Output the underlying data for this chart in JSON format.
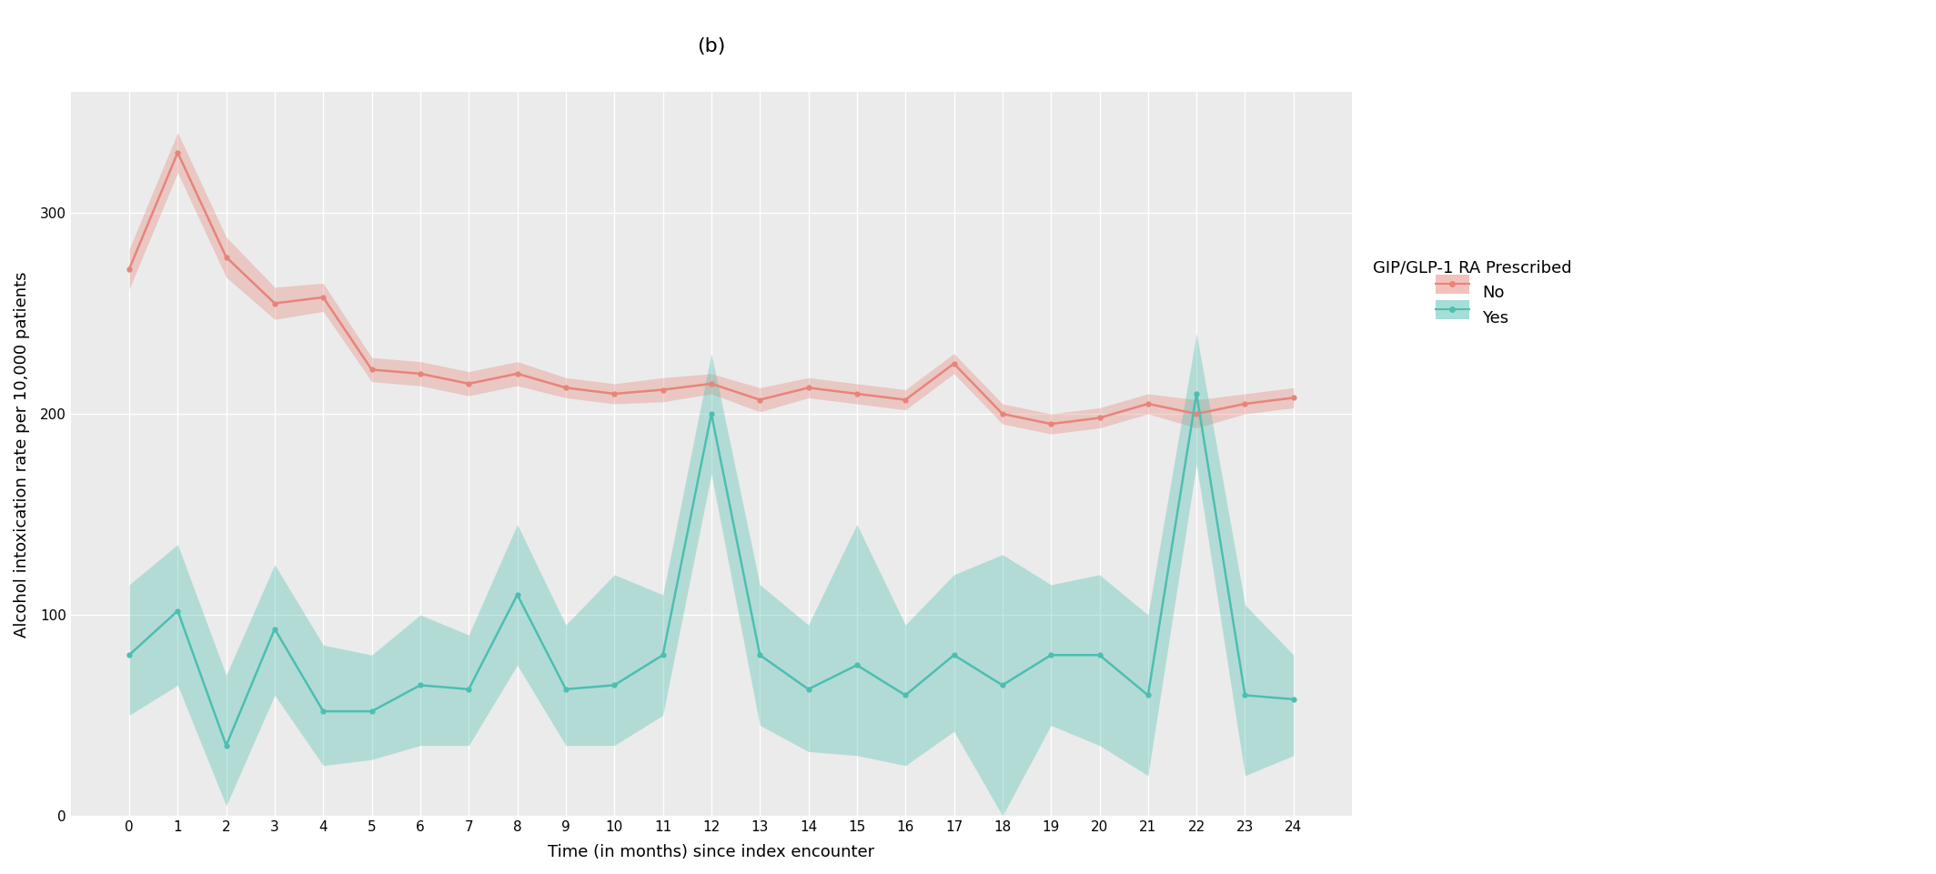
{
  "title": "(b)",
  "xlabel": "Time (in months) since index encounter",
  "ylabel": "Alcohol intoxication rate per 10,000 patients",
  "legend_title": "GIP/GLP-1 RA Prescribed",
  "legend_labels": [
    "No",
    "Yes"
  ],
  "x": [
    0,
    1,
    2,
    3,
    4,
    5,
    6,
    7,
    8,
    9,
    10,
    11,
    12,
    13,
    14,
    15,
    16,
    17,
    18,
    19,
    20,
    21,
    22,
    23,
    24
  ],
  "no_mean": [
    272,
    330,
    278,
    255,
    258,
    222,
    220,
    215,
    220,
    213,
    210,
    212,
    215,
    207,
    213,
    210,
    207,
    225,
    200,
    195,
    198,
    205,
    200,
    205,
    208
  ],
  "no_upper": [
    282,
    340,
    288,
    263,
    265,
    228,
    226,
    221,
    226,
    218,
    215,
    218,
    220,
    213,
    218,
    215,
    212,
    230,
    205,
    200,
    203,
    210,
    207,
    210,
    213
  ],
  "no_lower": [
    262,
    320,
    268,
    247,
    251,
    216,
    214,
    209,
    214,
    208,
    205,
    206,
    210,
    201,
    208,
    205,
    202,
    220,
    195,
    190,
    193,
    200,
    193,
    200,
    203
  ],
  "yes_mean": [
    80,
    102,
    35,
    93,
    52,
    52,
    65,
    63,
    110,
    63,
    65,
    80,
    200,
    80,
    63,
    75,
    60,
    80,
    65,
    80,
    80,
    60,
    210,
    60,
    58
  ],
  "yes_upper": [
    115,
    135,
    70,
    125,
    85,
    80,
    100,
    90,
    145,
    95,
    120,
    110,
    230,
    115,
    95,
    145,
    95,
    120,
    130,
    115,
    120,
    100,
    240,
    105,
    80
  ],
  "yes_lower": [
    50,
    65,
    5,
    60,
    25,
    28,
    35,
    35,
    75,
    35,
    35,
    50,
    170,
    45,
    32,
    30,
    25,
    42,
    0,
    45,
    35,
    20,
    175,
    20,
    30
  ],
  "no_color": "#E8847A",
  "yes_color": "#4CBFB0",
  "fill_alpha": 0.35,
  "plot_bg": "#EBEBEB",
  "header_color": "#D3D3D3",
  "outer_bg": "#FFFFFF",
  "ylim": [
    0,
    360
  ],
  "yticks": [
    0,
    100,
    200,
    300
  ],
  "title_fontsize": 16,
  "label_fontsize": 13,
  "tick_fontsize": 11,
  "legend_title_fontsize": 13,
  "legend_fontsize": 13
}
